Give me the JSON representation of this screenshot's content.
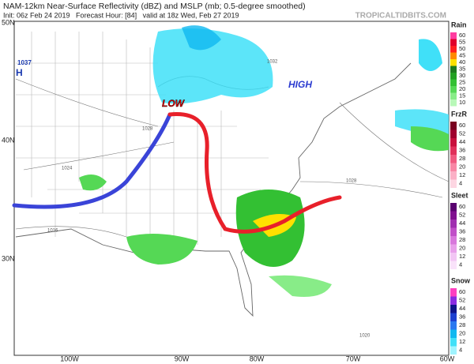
{
  "header": {
    "title": "NAM-12km Near-Surface Reflectivity (dBZ) and MSLP (mb; 0.5-degree smoothed)",
    "subtitle": "Init: 06z Feb 24 2019   Forecast Hour: [84]   valid at 18z Wed, Feb 27 2019",
    "credit": "TROPICALTIDBITS.COM"
  },
  "map": {
    "lat_labels": [
      "50N",
      "40N",
      "30N"
    ],
    "lon_labels": [
      "100W",
      "90W",
      "80W",
      "70W",
      "60W"
    ],
    "pressure_high": "1037",
    "high_symbol": "H",
    "low_label": "LOW",
    "high_label": "HIGH",
    "isobar_labels": [
      "1028",
      "1024",
      "1016",
      "1028",
      "1020",
      "1032"
    ]
  },
  "legends": [
    {
      "title": "Rain",
      "labels": [
        60,
        55,
        50,
        45,
        40,
        35,
        30,
        25,
        20,
        15,
        10
      ],
      "colors": [
        "#ff3ca0",
        "#e0002a",
        "#ff2020",
        "#ff8a00",
        "#ffe000",
        "#1e7a1e",
        "#22a022",
        "#33c033",
        "#55d855",
        "#88ec88",
        "#b8f8b8"
      ]
    },
    {
      "title": "FrzR",
      "labels": [
        60,
        52,
        44,
        36,
        28,
        20,
        12,
        4
      ],
      "colors": [
        "#7a0020",
        "#a0002e",
        "#c8103c",
        "#e0305a",
        "#f05a80",
        "#f887a5",
        "#fbb0c6",
        "#fdd6e2"
      ]
    },
    {
      "title": "Sleet",
      "labels": [
        60,
        52,
        44,
        36,
        28,
        20,
        12,
        4
      ],
      "colors": [
        "#5a0070",
        "#80108f",
        "#a030b0",
        "#c050c8",
        "#d878dc",
        "#e8a0ea",
        "#f2c6f4",
        "#f9e2fa"
      ]
    },
    {
      "title": "Snow",
      "labels": [
        60,
        52,
        44,
        36,
        28,
        20,
        12,
        4
      ],
      "colors": [
        "#ff40c0",
        "#8a2be2",
        "#10148a",
        "#1e40d0",
        "#2a78f0",
        "#10b8f0",
        "#40e0f8",
        "#a0f4ff"
      ]
    }
  ]
}
